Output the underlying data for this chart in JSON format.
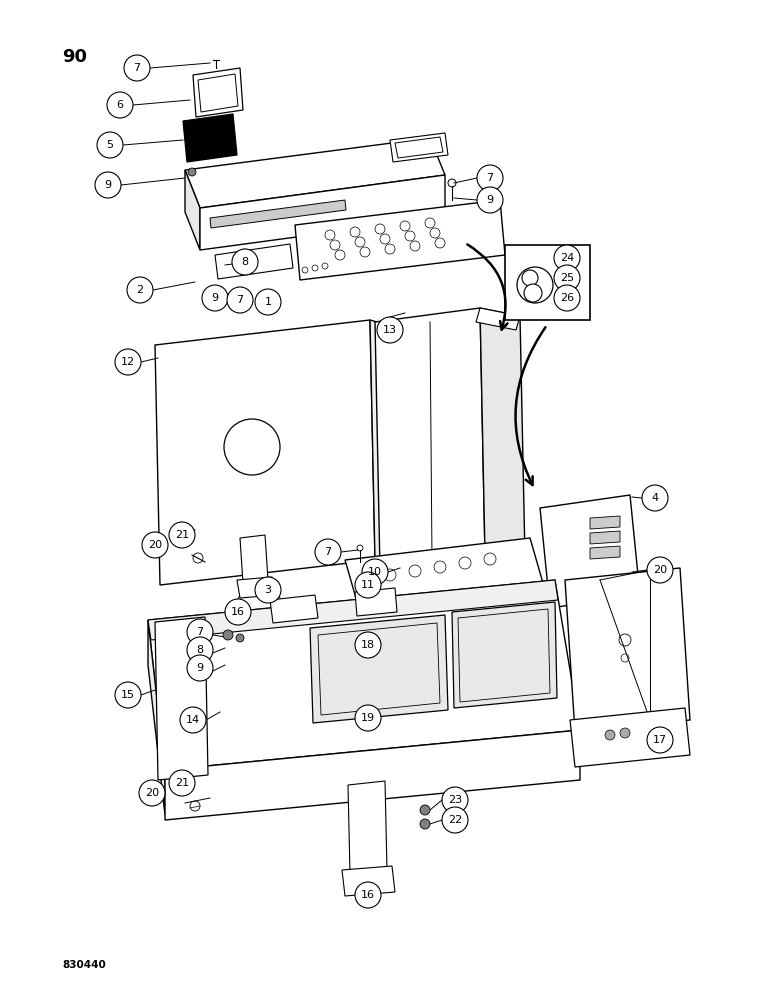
{
  "page_number": "90",
  "footer_text": "830440",
  "background_color": "#ffffff",
  "line_color": "#000000",
  "figsize": [
    7.8,
    10.0
  ],
  "dpi": 100
}
